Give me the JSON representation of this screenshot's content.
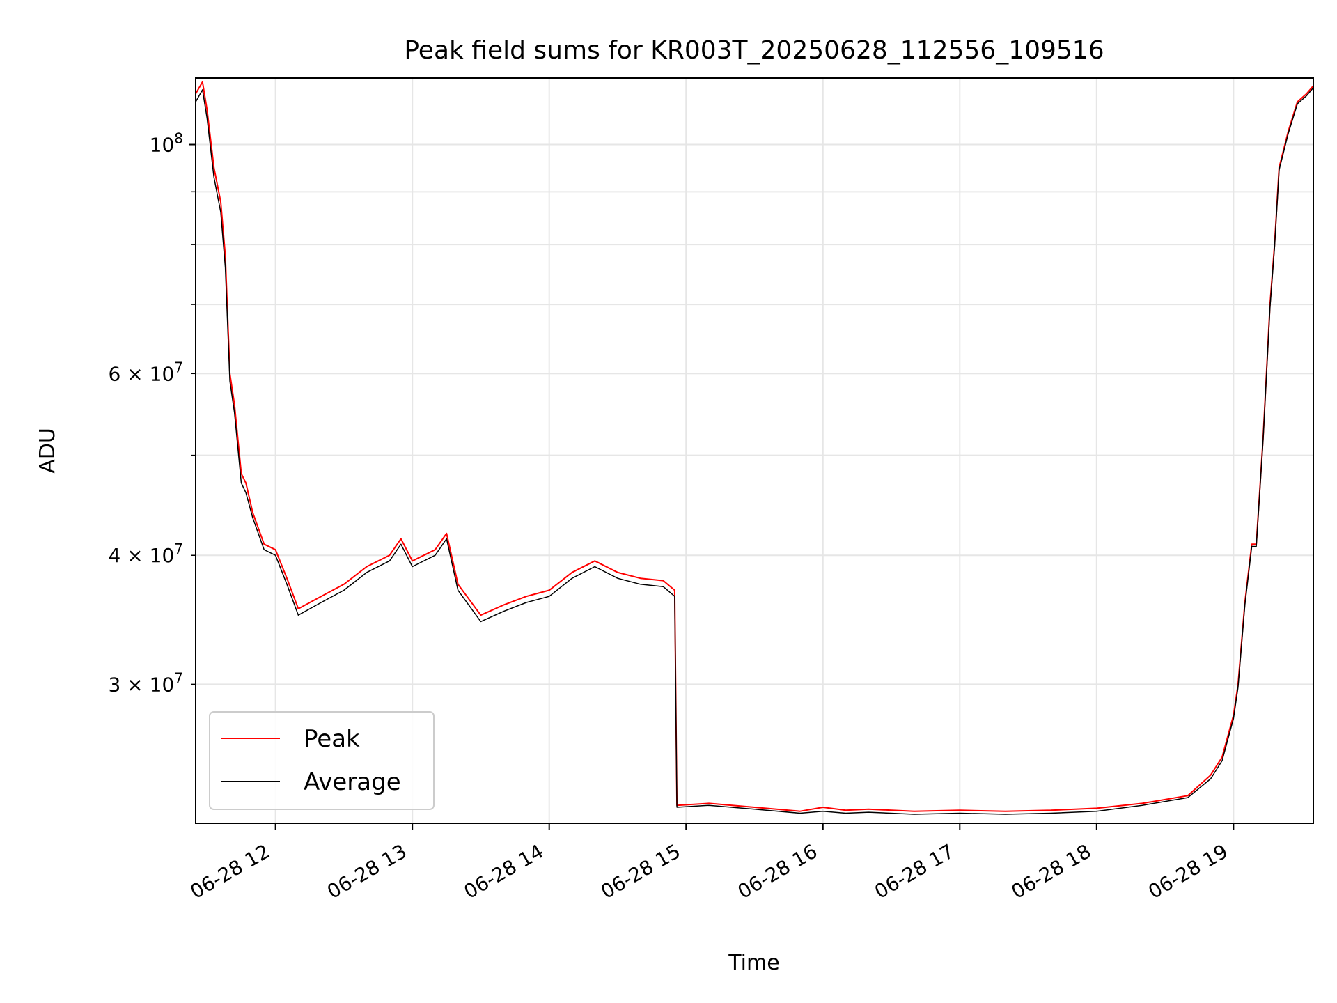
{
  "chart_data": {
    "type": "line",
    "title": "Peak field sums for KR003T_20250628_112556_109516",
    "xlabel": "Time",
    "ylabel": "ADU",
    "yscale": "log",
    "xlim": [
      "2025-06-28 11:25",
      "2025-06-28 19:35"
    ],
    "ylim": [
      22000000,
      116000000
    ],
    "x_tick_labels": [
      "06-28 12",
      "06-28 13",
      "06-28 14",
      "06-28 15",
      "06-28 16",
      "06-28 17",
      "06-28 18",
      "06-28 19"
    ],
    "x_tick_times": [
      "2025-06-28 12:00",
      "2025-06-28 13:00",
      "2025-06-28 14:00",
      "2025-06-28 15:00",
      "2025-06-28 16:00",
      "2025-06-28 17:00",
      "2025-06-28 18:00",
      "2025-06-28 19:00"
    ],
    "y_major_ticks": [
      {
        "value": 100000000,
        "label_base": "10",
        "label_exp": "8"
      }
    ],
    "y_minor_ticks": [
      {
        "value": 30000000,
        "label_base": "3 × 10",
        "label_exp": "7"
      },
      {
        "value": 40000000,
        "label_base": "4 × 10",
        "label_exp": "7"
      },
      {
        "value": 60000000,
        "label_base": "6 × 10",
        "label_exp": "7"
      }
    ],
    "y_minor_unlabeled": [
      50000000,
      70000000,
      80000000,
      90000000
    ],
    "grid": true,
    "legend_position": "lower-left",
    "colors": {
      "Peak": "#ff0000",
      "Average": "#000000"
    },
    "series": [
      {
        "name": "Peak",
        "x": [
          "2025-06-28 11:25",
          "2025-06-28 11:28",
          "2025-06-28 11:30",
          "2025-06-28 11:33",
          "2025-06-28 11:36",
          "2025-06-28 11:38",
          "2025-06-28 11:40",
          "2025-06-28 11:42",
          "2025-06-28 11:45",
          "2025-06-28 11:47",
          "2025-06-28 11:50",
          "2025-06-28 11:55",
          "2025-06-28 12:00",
          "2025-06-28 12:05",
          "2025-06-28 12:10",
          "2025-06-28 12:20",
          "2025-06-28 12:30",
          "2025-06-28 12:40",
          "2025-06-28 12:50",
          "2025-06-28 12:55",
          "2025-06-28 13:00",
          "2025-06-28 13:10",
          "2025-06-28 13:15",
          "2025-06-28 13:20",
          "2025-06-28 13:30",
          "2025-06-28 13:40",
          "2025-06-28 13:50",
          "2025-06-28 14:00",
          "2025-06-28 14:10",
          "2025-06-28 14:20",
          "2025-06-28 14:30",
          "2025-06-28 14:40",
          "2025-06-28 14:50",
          "2025-06-28 14:55",
          "2025-06-28 14:56",
          "2025-06-28 15:10",
          "2025-06-28 15:30",
          "2025-06-28 15:50",
          "2025-06-28 16:00",
          "2025-06-28 16:10",
          "2025-06-28 16:20",
          "2025-06-28 16:40",
          "2025-06-28 17:00",
          "2025-06-28 17:20",
          "2025-06-28 17:40",
          "2025-06-28 18:00",
          "2025-06-28 18:20",
          "2025-06-28 18:40",
          "2025-06-28 18:50",
          "2025-06-28 18:55",
          "2025-06-28 19:00",
          "2025-06-28 19:02",
          "2025-06-28 19:05",
          "2025-06-28 19:08",
          "2025-06-28 19:10",
          "2025-06-28 19:13",
          "2025-06-28 19:16",
          "2025-06-28 19:18",
          "2025-06-28 19:20",
          "2025-06-28 19:24",
          "2025-06-28 19:28",
          "2025-06-28 19:32",
          "2025-06-28 19:35"
        ],
        "values": [
          112000000,
          115000000,
          108000000,
          95000000,
          88000000,
          78000000,
          60000000,
          56000000,
          48000000,
          47000000,
          44000000,
          41000000,
          40500000,
          38000000,
          35500000,
          36500000,
          37500000,
          39000000,
          40000000,
          41500000,
          39500000,
          40500000,
          42000000,
          37500000,
          35000000,
          35800000,
          36500000,
          37000000,
          38500000,
          39500000,
          38500000,
          38000000,
          37800000,
          37000000,
          22900000,
          23000000,
          22800000,
          22600000,
          22800000,
          22650000,
          22700000,
          22600000,
          22650000,
          22600000,
          22650000,
          22750000,
          23000000,
          23400000,
          24500000,
          25500000,
          28000000,
          30000000,
          36000000,
          41000000,
          41000000,
          52000000,
          70000000,
          80000000,
          95000000,
          103000000,
          110000000,
          112000000,
          114000000
        ]
      },
      {
        "name": "Average",
        "x": [
          "2025-06-28 11:25",
          "2025-06-28 11:28",
          "2025-06-28 11:30",
          "2025-06-28 11:33",
          "2025-06-28 11:36",
          "2025-06-28 11:38",
          "2025-06-28 11:40",
          "2025-06-28 11:42",
          "2025-06-28 11:45",
          "2025-06-28 11:47",
          "2025-06-28 11:50",
          "2025-06-28 11:55",
          "2025-06-28 12:00",
          "2025-06-28 12:05",
          "2025-06-28 12:10",
          "2025-06-28 12:20",
          "2025-06-28 12:30",
          "2025-06-28 12:40",
          "2025-06-28 12:50",
          "2025-06-28 12:55",
          "2025-06-28 13:00",
          "2025-06-28 13:10",
          "2025-06-28 13:15",
          "2025-06-28 13:20",
          "2025-06-28 13:30",
          "2025-06-28 13:40",
          "2025-06-28 13:50",
          "2025-06-28 14:00",
          "2025-06-28 14:10",
          "2025-06-28 14:20",
          "2025-06-28 14:30",
          "2025-06-28 14:40",
          "2025-06-28 14:50",
          "2025-06-28 14:55",
          "2025-06-28 14:56",
          "2025-06-28 15:10",
          "2025-06-28 15:30",
          "2025-06-28 15:50",
          "2025-06-28 16:00",
          "2025-06-28 16:10",
          "2025-06-28 16:20",
          "2025-06-28 16:40",
          "2025-06-28 17:00",
          "2025-06-28 17:20",
          "2025-06-28 17:40",
          "2025-06-28 18:00",
          "2025-06-28 18:20",
          "2025-06-28 18:40",
          "2025-06-28 18:50",
          "2025-06-28 18:55",
          "2025-06-28 19:00",
          "2025-06-28 19:02",
          "2025-06-28 19:05",
          "2025-06-28 19:08",
          "2025-06-28 19:10",
          "2025-06-28 19:13",
          "2025-06-28 19:16",
          "2025-06-28 19:18",
          "2025-06-28 19:20",
          "2025-06-28 19:24",
          "2025-06-28 19:28",
          "2025-06-28 19:32",
          "2025-06-28 19:35"
        ],
        "values": [
          110000000,
          113000000,
          106000000,
          93000000,
          86000000,
          76000000,
          59000000,
          55000000,
          47000000,
          46000000,
          43500000,
          40500000,
          40000000,
          37500000,
          35000000,
          36000000,
          37000000,
          38500000,
          39500000,
          41000000,
          39000000,
          40000000,
          41500000,
          37000000,
          34500000,
          35300000,
          36000000,
          36500000,
          38000000,
          39000000,
          38000000,
          37500000,
          37300000,
          36500000,
          22800000,
          22900000,
          22700000,
          22500000,
          22600000,
          22500000,
          22550000,
          22450000,
          22500000,
          22450000,
          22500000,
          22600000,
          22900000,
          23300000,
          24300000,
          25300000,
          27800000,
          29800000,
          35800000,
          40800000,
          40800000,
          51800000,
          69500000,
          79500000,
          94500000,
          102500000,
          109500000,
          111500000,
          113500000
        ]
      }
    ]
  }
}
